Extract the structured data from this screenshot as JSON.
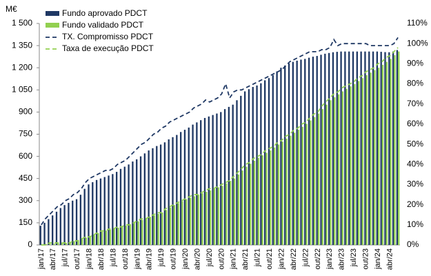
{
  "chart_data": {
    "type": "bar",
    "y_label": "M€",
    "categories": [
      "jan/17",
      null,
      null,
      "abr/17",
      null,
      null,
      "jul/17",
      null,
      null,
      "out/17",
      null,
      null,
      "jan/18",
      null,
      null,
      "abr/18",
      null,
      null,
      "jul/18",
      null,
      null,
      "out/18",
      null,
      null,
      "jan/19",
      null,
      null,
      "abr/19",
      null,
      null,
      "jul/19",
      null,
      null,
      "out/19",
      null,
      null,
      "jan/20",
      null,
      null,
      "abr/20",
      null,
      null,
      "jul/20",
      null,
      null,
      "out/20",
      null,
      null,
      "jan/21",
      null,
      null,
      "abr/21",
      null,
      null,
      "jul/21",
      null,
      null,
      "out/21",
      null,
      null,
      "jan/22",
      null,
      null,
      "abr/22",
      null,
      null,
      "jul/22",
      null,
      null,
      "out/22",
      null,
      null,
      "jan/23",
      null,
      null,
      "abr/23",
      null,
      null,
      "jul/23",
      null,
      null,
      "out/23",
      null,
      null,
      "jan/24",
      null,
      null,
      "abr/24",
      null,
      null
    ],
    "series": [
      {
        "name": "Fundo aprovado PDCT",
        "type": "bar",
        "color": "#1f3864",
        "values": [
          130,
          150,
          175,
          200,
          225,
          250,
          270,
          285,
          300,
          310,
          340,
          380,
          410,
          425,
          440,
          450,
          460,
          470,
          480,
          495,
          515,
          530,
          545,
          565,
          580,
          600,
          620,
          640,
          655,
          670,
          680,
          695,
          715,
          730,
          745,
          765,
          780,
          795,
          815,
          830,
          845,
          860,
          870,
          880,
          890,
          900,
          920,
          935,
          950,
          980,
          1010,
          1040,
          1055,
          1070,
          1080,
          1095,
          1115,
          1130,
          1150,
          1175,
          1200,
          1215,
          1230,
          1240,
          1248,
          1255,
          1260,
          1268,
          1275,
          1280,
          1288,
          1295,
          1300,
          1305,
          1308,
          1310,
          1310,
          1310,
          1310,
          1310,
          1310,
          1310,
          1310,
          1310,
          1310,
          1308,
          1306,
          1305,
          1310,
          1320
        ]
      },
      {
        "name": "Fundo validado PDCT",
        "type": "bar",
        "color": "#92d050",
        "values": [
          5,
          6,
          7,
          8,
          10,
          12,
          15,
          20,
          25,
          30,
          40,
          50,
          60,
          70,
          80,
          90,
          97,
          104,
          110,
          117,
          124,
          130,
          140,
          150,
          160,
          170,
          180,
          190,
          200,
          210,
          220,
          237,
          254,
          270,
          283,
          297,
          310,
          320,
          330,
          340,
          350,
          360,
          370,
          380,
          390,
          400,
          417,
          434,
          450,
          477,
          504,
          530,
          550,
          570,
          590,
          607,
          624,
          640,
          660,
          680,
          700,
          720,
          740,
          760,
          780,
          800,
          820,
          843,
          866,
          890,
          920,
          950,
          980,
          1000,
          1020,
          1040,
          1057,
          1074,
          1090,
          1110,
          1130,
          1150,
          1167,
          1184,
          1200,
          1220,
          1240,
          1260,
          1285,
          1310
        ]
      },
      {
        "name": "TX. Compromisso PDCT",
        "type": "line",
        "axis": "y2",
        "color": "#1f3864",
        "values": [
          10,
          13,
          15,
          17,
          19,
          20,
          22,
          23,
          25,
          26,
          28,
          31,
          33,
          34,
          35,
          36,
          37,
          37,
          38,
          40,
          41,
          42,
          44,
          46,
          48,
          50,
          51,
          53,
          55,
          56,
          58,
          59,
          61,
          62,
          63,
          64,
          65,
          66,
          68,
          69,
          70,
          72,
          71,
          72,
          73,
          75,
          80,
          73,
          76,
          77,
          77,
          78,
          79,
          80,
          81,
          82,
          83,
          84,
          85,
          86,
          87,
          89,
          91,
          92,
          93,
          94,
          95,
          96,
          96,
          96,
          97,
          97,
          98,
          102,
          99,
          100,
          100,
          100,
          100,
          100,
          100,
          100,
          99,
          99,
          99,
          99,
          99,
          99,
          100,
          103
        ]
      },
      {
        "name": "Taxa de execução PDCT",
        "type": "line",
        "axis": "y2",
        "color": "#92d050",
        "values": [
          0,
          0,
          1,
          1,
          1,
          1,
          1,
          1,
          2,
          2,
          3,
          4,
          4,
          5,
          6,
          7,
          7,
          8,
          8,
          9,
          9,
          10,
          10,
          11,
          12,
          13,
          13,
          14,
          15,
          16,
          16,
          18,
          19,
          20,
          21,
          22,
          23,
          24,
          25,
          25,
          26,
          27,
          28,
          28,
          29,
          30,
          31,
          32,
          34,
          36,
          38,
          40,
          41,
          43,
          44,
          45,
          47,
          48,
          49,
          51,
          52,
          54,
          55,
          57,
          58,
          60,
          61,
          63,
          65,
          66,
          69,
          71,
          73,
          75,
          76,
          78,
          79,
          80,
          81,
          83,
          84,
          86,
          87,
          88,
          90,
          91,
          93,
          94,
          96,
          98
        ]
      }
    ],
    "ylim": [
      0,
      1500
    ],
    "yticks": [
      0,
      150,
      300,
      450,
      600,
      750,
      900,
      {
        "value": 1050,
        "label": "1 050"
      },
      {
        "value": 1200,
        "label": "1 200"
      },
      {
        "value": 1350,
        "label": "1 350"
      },
      {
        "value": 1500,
        "label": "1 500"
      }
    ],
    "y2lim": [
      0,
      110
    ],
    "y2ticks": [
      {
        "value": 0,
        "label": "0%"
      },
      {
        "value": 10,
        "label": "10%"
      },
      {
        "value": 20,
        "label": "20%"
      },
      {
        "value": 30,
        "label": "30%"
      },
      {
        "value": 40,
        "label": "40%"
      },
      {
        "value": 50,
        "label": "50%"
      },
      {
        "value": 60,
        "label": "60%"
      },
      {
        "value": 70,
        "label": "70%"
      },
      {
        "value": 80,
        "label": "80%"
      },
      {
        "value": 90,
        "label": "90%"
      },
      {
        "value": 100,
        "label": "100%"
      },
      {
        "value": 110,
        "label": "110%"
      }
    ],
    "grid": false,
    "legend": "top-left"
  }
}
